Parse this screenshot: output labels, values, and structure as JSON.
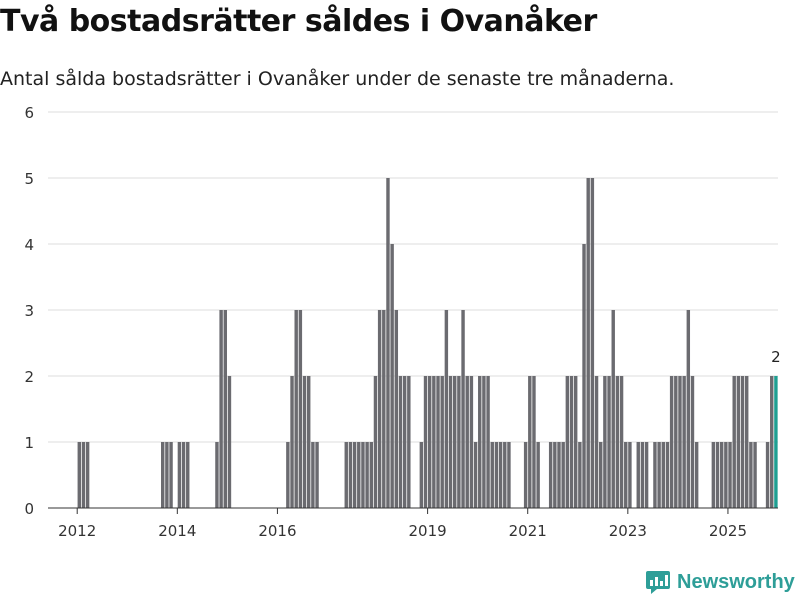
{
  "title": "Två bostadsrätter såldes i Ovanåker",
  "subtitle": "Antal sålda bostadsrätter i Ovanåker under de senaste tre månaderna.",
  "logo": {
    "text": "Newsworthy",
    "icon": "bar-chart-logo-icon"
  },
  "colors": {
    "bar": "#6b6b70",
    "highlight": "#1f9f92",
    "grid": "#dddddd",
    "axis": "#333333"
  },
  "chart_data": {
    "type": "bar",
    "title": "Två bostadsrätter såldes i Ovanåker",
    "xlabel": "",
    "ylabel": "",
    "ylim": [
      0,
      6
    ],
    "yticks": [
      0,
      1,
      2,
      3,
      4,
      5,
      6
    ],
    "xticks": [
      {
        "label": "2012",
        "year": 2012
      },
      {
        "label": "2014",
        "year": 2014
      },
      {
        "label": "2016",
        "year": 2016
      },
      {
        "label": "2019",
        "year": 2019
      },
      {
        "label": "2021",
        "year": 2021
      },
      {
        "label": "2023",
        "year": 2023
      },
      {
        "label": "2025",
        "year": 2025
      }
    ],
    "x_start": "2011-06",
    "x_end": "2026-01",
    "highlight_label": "2",
    "series": [
      {
        "name": "Sålda bostadsrätter",
        "points": [
          [
            "2012-01",
            1
          ],
          [
            "2012-02",
            1
          ],
          [
            "2012-03",
            1
          ],
          [
            "2013-09",
            1
          ],
          [
            "2013-10",
            1
          ],
          [
            "2013-11",
            1
          ],
          [
            "2014-01",
            1
          ],
          [
            "2014-02",
            1
          ],
          [
            "2014-03",
            1
          ],
          [
            "2014-10",
            1
          ],
          [
            "2014-11",
            3
          ],
          [
            "2014-12",
            3
          ],
          [
            "2015-01",
            2
          ],
          [
            "2016-03",
            1
          ],
          [
            "2016-04",
            2
          ],
          [
            "2016-05",
            3
          ],
          [
            "2016-06",
            3
          ],
          [
            "2016-07",
            2
          ],
          [
            "2016-08",
            2
          ],
          [
            "2016-09",
            1
          ],
          [
            "2016-10",
            1
          ],
          [
            "2017-05",
            1
          ],
          [
            "2017-06",
            1
          ],
          [
            "2017-07",
            1
          ],
          [
            "2017-08",
            1
          ],
          [
            "2017-09",
            1
          ],
          [
            "2017-10",
            1
          ],
          [
            "2017-11",
            1
          ],
          [
            "2017-12",
            2
          ],
          [
            "2018-01",
            3
          ],
          [
            "2018-02",
            3
          ],
          [
            "2018-03",
            5
          ],
          [
            "2018-04",
            4
          ],
          [
            "2018-05",
            3
          ],
          [
            "2018-06",
            2
          ],
          [
            "2018-07",
            2
          ],
          [
            "2018-08",
            2
          ],
          [
            "2018-11",
            1
          ],
          [
            "2018-12",
            2
          ],
          [
            "2019-01",
            2
          ],
          [
            "2019-02",
            2
          ],
          [
            "2019-03",
            2
          ],
          [
            "2019-04",
            2
          ],
          [
            "2019-05",
            3
          ],
          [
            "2019-06",
            2
          ],
          [
            "2019-07",
            2
          ],
          [
            "2019-08",
            2
          ],
          [
            "2019-09",
            3
          ],
          [
            "2019-10",
            2
          ],
          [
            "2019-11",
            2
          ],
          [
            "2019-12",
            1
          ],
          [
            "2020-01",
            2
          ],
          [
            "2020-02",
            2
          ],
          [
            "2020-03",
            2
          ],
          [
            "2020-04",
            1
          ],
          [
            "2020-05",
            1
          ],
          [
            "2020-06",
            1
          ],
          [
            "2020-07",
            1
          ],
          [
            "2020-08",
            1
          ],
          [
            "2020-12",
            1
          ],
          [
            "2021-01",
            2
          ],
          [
            "2021-02",
            2
          ],
          [
            "2021-03",
            1
          ],
          [
            "2021-06",
            1
          ],
          [
            "2021-07",
            1
          ],
          [
            "2021-08",
            1
          ],
          [
            "2021-09",
            1
          ],
          [
            "2021-10",
            2
          ],
          [
            "2021-11",
            2
          ],
          [
            "2021-12",
            2
          ],
          [
            "2022-01",
            1
          ],
          [
            "2022-02",
            4
          ],
          [
            "2022-03",
            5
          ],
          [
            "2022-04",
            5
          ],
          [
            "2022-05",
            2
          ],
          [
            "2022-06",
            1
          ],
          [
            "2022-07",
            2
          ],
          [
            "2022-08",
            2
          ],
          [
            "2022-09",
            3
          ],
          [
            "2022-10",
            2
          ],
          [
            "2022-11",
            2
          ],
          [
            "2022-12",
            1
          ],
          [
            "2023-01",
            1
          ],
          [
            "2023-03",
            1
          ],
          [
            "2023-04",
            1
          ],
          [
            "2023-05",
            1
          ],
          [
            "2023-07",
            1
          ],
          [
            "2023-08",
            1
          ],
          [
            "2023-09",
            1
          ],
          [
            "2023-10",
            1
          ],
          [
            "2023-11",
            2
          ],
          [
            "2023-12",
            2
          ],
          [
            "2024-01",
            2
          ],
          [
            "2024-02",
            2
          ],
          [
            "2024-03",
            3
          ],
          [
            "2024-04",
            2
          ],
          [
            "2024-05",
            1
          ],
          [
            "2024-09",
            1
          ],
          [
            "2024-10",
            1
          ],
          [
            "2024-11",
            1
          ],
          [
            "2024-12",
            1
          ],
          [
            "2025-01",
            1
          ],
          [
            "2025-02",
            2
          ],
          [
            "2025-03",
            2
          ],
          [
            "2025-04",
            2
          ],
          [
            "2025-05",
            2
          ],
          [
            "2025-06",
            1
          ],
          [
            "2025-07",
            1
          ],
          [
            "2025-10",
            1
          ],
          [
            "2025-11",
            2
          ],
          [
            "2025-12",
            2
          ]
        ]
      }
    ],
    "highlight_index_from_end": 1
  }
}
